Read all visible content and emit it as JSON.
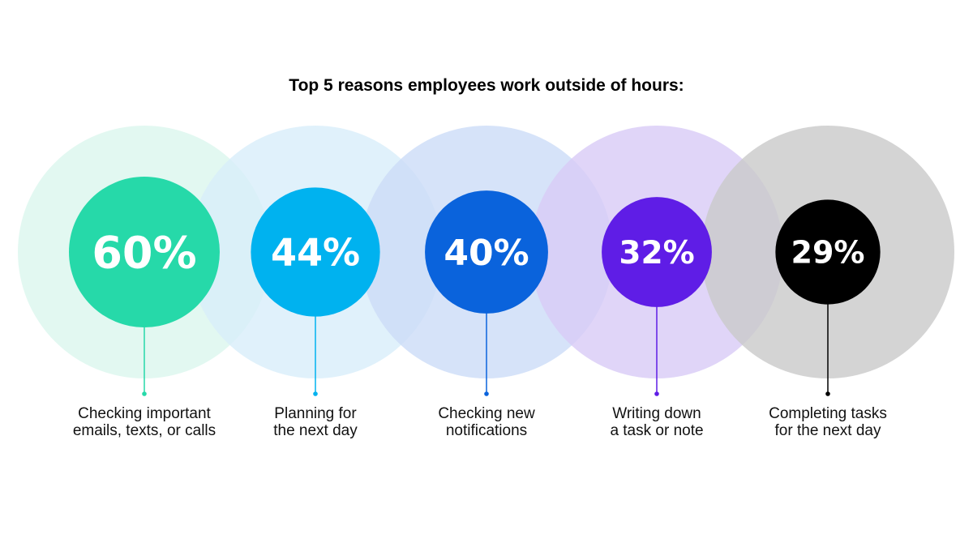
{
  "chart_data": {
    "type": "bubble",
    "title": "Top 5 reasons employees work outside of hours:",
    "categories": [
      [
        "Checking important",
        "emails, texts, or calls"
      ],
      [
        "Planning for",
        "the next day"
      ],
      [
        "Checking new",
        "notifications"
      ],
      [
        "Writing down",
        "a task or note"
      ],
      [
        "Completing tasks",
        "for the next day"
      ]
    ],
    "values": [
      60,
      44,
      40,
      32,
      29
    ],
    "value_labels": [
      "60%",
      "44%",
      "40%",
      "32%",
      "29%"
    ],
    "unit": "%",
    "colors": {
      "inner": [
        "#26d9a9",
        "#00b2ef",
        "#0a63dc",
        "#5f1de6",
        "#000000"
      ],
      "outer": [
        "#dbf6ee",
        "#d8eefa",
        "#ccdcf8",
        "#d8cbf6",
        "#c9c9c9"
      ],
      "outer_opacity": 0.8
    },
    "legend": "none",
    "grid": false
  }
}
